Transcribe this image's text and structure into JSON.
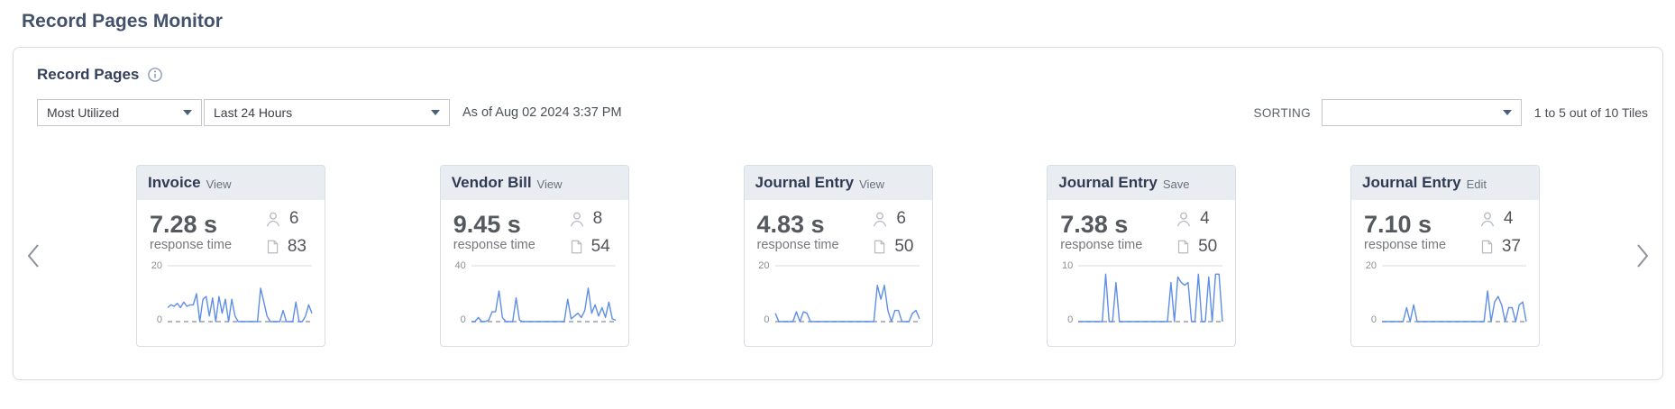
{
  "page_title": "Record Pages Monitor",
  "panel": {
    "title": "Record Pages"
  },
  "controls": {
    "utilization_filter": "Most Utilized",
    "time_range_filter": "Last 24 Hours",
    "as_of": "As of Aug 02 2024 3:37 PM",
    "sorting_label": "SORTING",
    "sorting_value": "",
    "pagination": "1 to 5 out of 10 Tiles"
  },
  "labels": {
    "response_time": "response time"
  },
  "colors": {
    "title_text": "#42526b",
    "tile_header_bg": "#e9edf2",
    "sparkline": "#5e8ee8",
    "dropdown_caret": "#4a6078"
  },
  "tiles": [
    {
      "name": "Invoice",
      "action": "View",
      "response_time": "7.28 s",
      "users": "6",
      "pages": "83",
      "chart": {
        "type": "line",
        "ymax": 20,
        "ymax_label": "20",
        "ymin_label": "0",
        "values": [
          5,
          6,
          5.5,
          6.5,
          5,
          7,
          5.5,
          6,
          6,
          10,
          0,
          8,
          9,
          2,
          8.5,
          0,
          9,
          3,
          8,
          0,
          8,
          2,
          0,
          0,
          0,
          0,
          0,
          0,
          0,
          12,
          7,
          2,
          0,
          0,
          0,
          0,
          4,
          0,
          0,
          0,
          7,
          0,
          0,
          2,
          6,
          3
        ]
      }
    },
    {
      "name": "Vendor Bill",
      "action": "View",
      "response_time": "9.45 s",
      "users": "8",
      "pages": "54",
      "chart": {
        "type": "line",
        "ymax": 40,
        "ymax_label": "40",
        "ymin_label": "0",
        "values": [
          0,
          0,
          3,
          0,
          0,
          1,
          7,
          7,
          22,
          3,
          0,
          0,
          0,
          17,
          1,
          0,
          0,
          0,
          0,
          0,
          0,
          0,
          0,
          0,
          0,
          0,
          0,
          0,
          16,
          2,
          4,
          6,
          3,
          8,
          24,
          6,
          12,
          4,
          10,
          3,
          14,
          2,
          1
        ]
      }
    },
    {
      "name": "Journal Entry",
      "action": "View",
      "response_time": "4.83 s",
      "users": "6",
      "pages": "50",
      "chart": {
        "type": "line",
        "ymax": 20,
        "ymax_label": "20",
        "ymin_label": "0",
        "values": [
          3,
          0,
          0,
          0,
          0,
          0,
          3.5,
          0,
          3.5,
          3,
          0,
          0,
          0,
          0,
          0,
          0,
          0,
          0,
          0,
          0,
          0,
          0,
          0,
          0,
          0,
          0,
          0,
          0,
          0,
          13,
          8,
          13,
          4,
          0,
          4,
          4,
          0,
          0,
          0,
          3,
          4,
          1
        ]
      }
    },
    {
      "name": "Journal Entry",
      "action": "Save",
      "response_time": "7.38 s",
      "users": "4",
      "pages": "50",
      "chart": {
        "type": "line",
        "ymax": 10,
        "ymax_label": "10",
        "ymin_label": "0",
        "values": [
          0,
          0,
          0,
          0,
          0,
          0,
          0,
          0,
          8.5,
          0,
          0,
          7,
          0,
          0,
          0,
          0,
          0,
          0,
          0,
          0,
          0,
          0,
          0,
          0,
          0,
          0,
          0,
          7,
          0,
          8,
          7,
          6.5,
          7,
          0,
          0,
          8.5,
          0,
          0,
          8,
          0,
          8.5,
          8.5,
          0
        ]
      }
    },
    {
      "name": "Journal Entry",
      "action": "Edit",
      "response_time": "7.10 s",
      "users": "4",
      "pages": "37",
      "chart": {
        "type": "line",
        "ymax": 20,
        "ymax_label": "20",
        "ymin_label": "0",
        "values": [
          0,
          0,
          0,
          0,
          0,
          0,
          0,
          5,
          0,
          6,
          0,
          0,
          0,
          0,
          0,
          0,
          0,
          0,
          0,
          0,
          0,
          0,
          0,
          0,
          0,
          0,
          0,
          0,
          0,
          0,
          11,
          0,
          7,
          9,
          6,
          0,
          5,
          5,
          0,
          6,
          7,
          0
        ]
      }
    }
  ]
}
